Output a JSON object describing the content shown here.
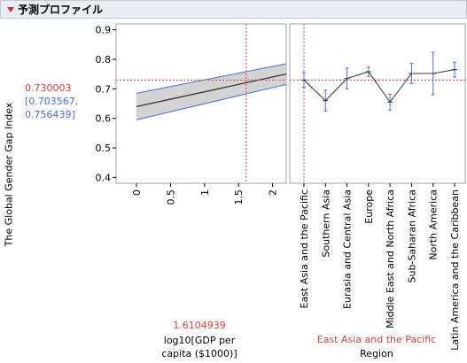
{
  "header": {
    "title": "予測プロファイル"
  },
  "response": {
    "label": "The Global Gender Gap Index",
    "value": "0.730003",
    "ci_line1": "[0.703567,",
    "ci_line2": "0.756439]"
  },
  "factor1": {
    "value": "1.6104939",
    "label_line1": "log10[GDP per",
    "label_line2": "capita ($1000)]"
  },
  "factor2": {
    "value": "East Asia and the Pacific",
    "label": "Region"
  },
  "colors": {
    "red": "#e0403a",
    "blue": "#4a6fd8",
    "band": "#c8c8c8",
    "line": "#333333"
  },
  "chart_data": [
    {
      "type": "line",
      "x": [
        0,
        2.2
      ],
      "y": [
        0.64,
        0.75
      ],
      "band_lower": [
        0.595,
        0.715
      ],
      "band_upper": [
        0.685,
        0.785
      ],
      "xlim": [
        -0.3,
        2.2
      ],
      "ylim": [
        0.38,
        0.92
      ],
      "xticks": [
        "0",
        "0.5",
        "1",
        "1.5",
        "2"
      ],
      "xtick_values": [
        0,
        0.5,
        1,
        1.5,
        2
      ],
      "yticks": [
        "0.4",
        "0.5",
        "0.6",
        "0.7",
        "0.8",
        "0.9"
      ],
      "ytick_values": [
        0.4,
        0.5,
        0.6,
        0.7,
        0.8,
        0.9
      ],
      "current_x": 1.6104939,
      "current_y": 0.730003
    },
    {
      "type": "line",
      "categories": [
        "East Asia and the Pacific",
        "Southern Asia",
        "Eurasia and Central Asia",
        "Europe",
        "Middle East and North Africa",
        "Sub-Saharan Africa",
        "North America",
        "Latin America and the Caribbean"
      ],
      "values": [
        0.73,
        0.66,
        0.735,
        0.758,
        0.655,
        0.752,
        0.752,
        0.765
      ],
      "lower": [
        0.705,
        0.625,
        0.7,
        0.742,
        0.628,
        0.718,
        0.68,
        0.74
      ],
      "upper": [
        0.755,
        0.695,
        0.77,
        0.774,
        0.682,
        0.786,
        0.824,
        0.79
      ],
      "ylim": [
        0.38,
        0.92
      ],
      "current_category": "East Asia and the Pacific",
      "current_y": 0.730003
    }
  ]
}
